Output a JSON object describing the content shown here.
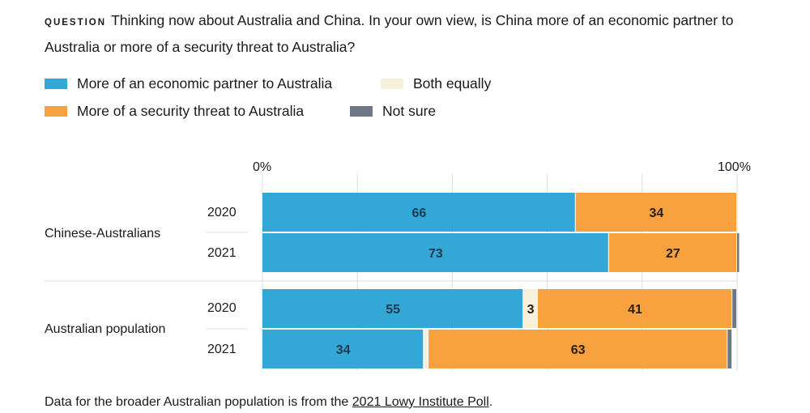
{
  "question": {
    "label": "QUESTION",
    "text": "Thinking now about Australia and China. In your own view, is China more of an economic partner to Australia or more of a security threat to Australia?"
  },
  "legend": [
    {
      "label": "More of an economic partner to Australia",
      "color": "#33a8d6"
    },
    {
      "label": "Both equally",
      "color": "#f7f1dc"
    },
    {
      "label": "More of a security threat to Australia",
      "color": "#f8a13f"
    },
    {
      "label": "Not sure",
      "color": "#6f7685"
    }
  ],
  "chart_data": {
    "type": "bar",
    "orientation": "horizontal",
    "stacked": true,
    "x_ticks": [
      "0%",
      "100%"
    ],
    "xlim": [
      0,
      100
    ],
    "grid": true,
    "series_names": [
      "More of an economic partner to Australia",
      "Both equally",
      "More of a security threat to Australia",
      "Not sure"
    ],
    "groups": [
      {
        "label": "Chinese-Australians",
        "rows": [
          {
            "year": "2020",
            "values": [
              66,
              0,
              34,
              0
            ],
            "labels": [
              "66",
              "",
              "34",
              ""
            ]
          },
          {
            "year": "2021",
            "values": [
              73,
              0,
              27,
              0.6
            ],
            "labels": [
              "73",
              "",
              "27",
              ""
            ]
          }
        ]
      },
      {
        "label": "Australian population",
        "rows": [
          {
            "year": "2020",
            "values": [
              55,
              3,
              41,
              1
            ],
            "labels": [
              "55",
              "3",
              "41",
              ""
            ]
          },
          {
            "year": "2021",
            "values": [
              34,
              1,
              63,
              1
            ],
            "labels": [
              "34",
              "",
              "63",
              ""
            ]
          }
        ]
      }
    ]
  },
  "footnote": {
    "prefix": "Data for the broader Australian population is from the ",
    "link": "2021 Lowy Institute Poll",
    "suffix": "."
  }
}
